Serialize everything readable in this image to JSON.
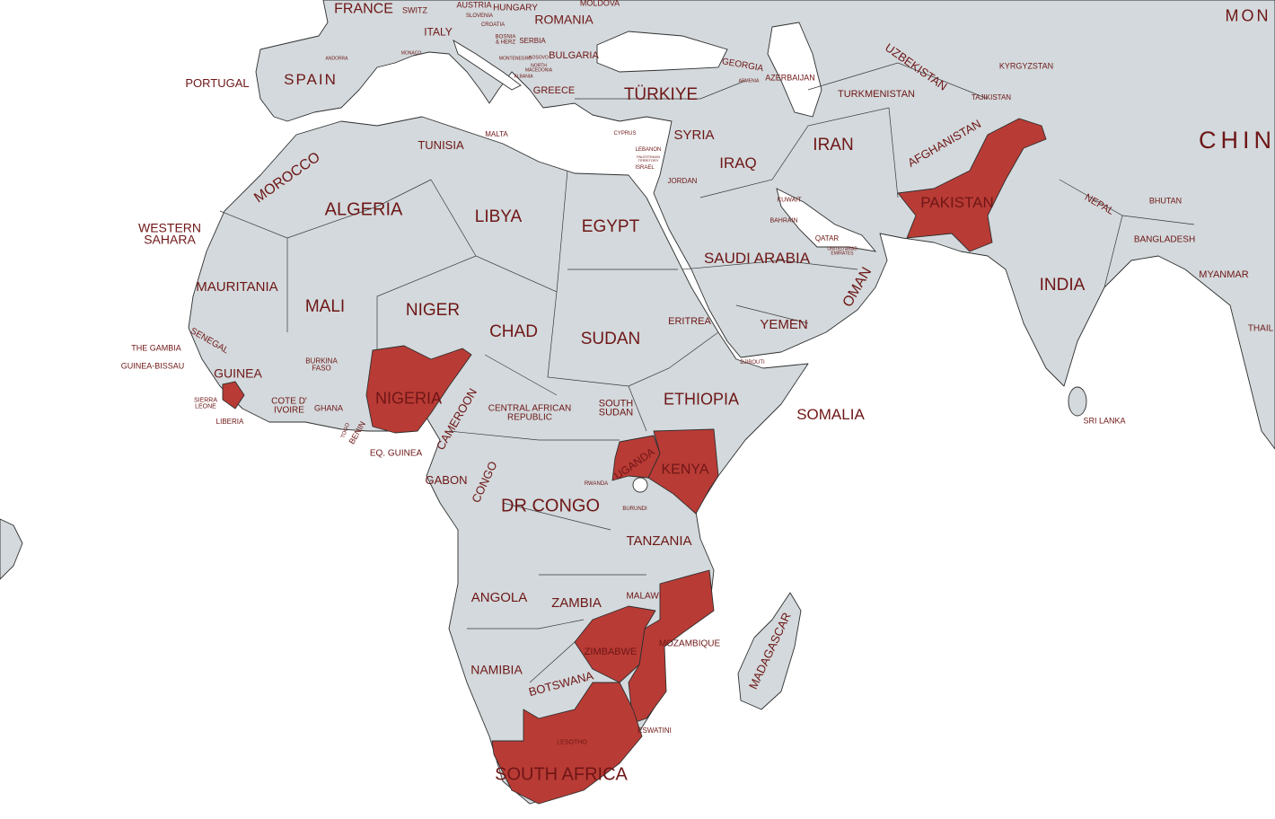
{
  "map": {
    "land_color": "#d3d9dc",
    "sea_color": "#ffffff",
    "highlight_color": "#b93b35",
    "label_color": "#6e1616",
    "highlighted_countries": [
      "Nigeria",
      "Sierra Leone",
      "Kenya",
      "Uganda",
      "Pakistan",
      "Mozambique",
      "Zimbabwe",
      "South Africa"
    ]
  },
  "labels": [
    {
      "text": "FRANCE"
    },
    {
      "text": "SWITZ"
    },
    {
      "text": "AUSTRIA"
    },
    {
      "text": "HUNGARY"
    },
    {
      "text": "MOLDOVA"
    },
    {
      "text": "ROMANIA"
    },
    {
      "text": "ITALY"
    },
    {
      "text": "SLOVENIA"
    },
    {
      "text": "CROATIA"
    },
    {
      "text": "BOSNIA\n& HERZ"
    },
    {
      "text": "SERBIA"
    },
    {
      "text": "BULGARIA"
    },
    {
      "text": "MONTENEGRO"
    },
    {
      "text": "KOSOVO"
    },
    {
      "text": "NORTH\nMACEDONIA"
    },
    {
      "text": "ALBANIA"
    },
    {
      "text": "GREECE"
    },
    {
      "text": "ANDORRA"
    },
    {
      "text": "MONACO"
    },
    {
      "text": "SPAIN"
    },
    {
      "text": "PORTUGAL"
    },
    {
      "text": "MALTA"
    },
    {
      "text": "TUNISIA"
    },
    {
      "text": "CYPRUS"
    },
    {
      "text": "LEBANON"
    },
    {
      "text": "PALESTINIAN\nTERRITORY"
    },
    {
      "text": "ISRAEL"
    },
    {
      "text": "SYRIA"
    },
    {
      "text": "IRAQ"
    },
    {
      "text": "JORDAN"
    },
    {
      "text": "IRAN"
    },
    {
      "text": "KUWAIT"
    },
    {
      "text": "BAHRAIN"
    },
    {
      "text": "QATAR"
    },
    {
      "text": "UNITED ARAB\nEMIRATES"
    },
    {
      "text": "SAUDI ARABIA"
    },
    {
      "text": "OMAN"
    },
    {
      "text": "YEMEN"
    },
    {
      "text": "TÜRKIYE"
    },
    {
      "text": "GEORGIA"
    },
    {
      "text": "ARMENIA"
    },
    {
      "text": "AZERBAIJAN"
    },
    {
      "text": "TURKMENISTAN"
    },
    {
      "text": "UZBEKISTAN"
    },
    {
      "text": "KYRGYZSTAN"
    },
    {
      "text": "TAJIKISTAN"
    },
    {
      "text": "AFGHANISTAN"
    },
    {
      "text": "PAKISTAN"
    },
    {
      "text": "NEPAL"
    },
    {
      "text": "BHUTAN"
    },
    {
      "text": "BANGLADESH"
    },
    {
      "text": "INDIA"
    },
    {
      "text": "MYANMAR"
    },
    {
      "text": "THAIL"
    },
    {
      "text": "SRI LANKA"
    },
    {
      "text": "MON"
    },
    {
      "text": "CHIN"
    },
    {
      "text": "MOROCCO"
    },
    {
      "text": "ALGERIA"
    },
    {
      "text": "LIBYA"
    },
    {
      "text": "EGYPT"
    },
    {
      "text": "WESTERN\nSAHARA"
    },
    {
      "text": "MAURITANIA"
    },
    {
      "text": "MALI"
    },
    {
      "text": "NIGER"
    },
    {
      "text": "CHAD"
    },
    {
      "text": "SUDAN"
    },
    {
      "text": "ERITREA"
    },
    {
      "text": "DJIBOUTI"
    },
    {
      "text": "ETHIOPIA"
    },
    {
      "text": "SOMALIA"
    },
    {
      "text": "SENEGAL"
    },
    {
      "text": "THE GAMBIA"
    },
    {
      "text": "GUINEA-BISSAU"
    },
    {
      "text": "GUINEA"
    },
    {
      "text": "SIERRA\nLEONE"
    },
    {
      "text": "LIBERIA"
    },
    {
      "text": "BURKINA\nFASO"
    },
    {
      "text": "COTE D'\nIVOIRE"
    },
    {
      "text": "GHANA"
    },
    {
      "text": "TOGO"
    },
    {
      "text": "BENIN"
    },
    {
      "text": "NIGERIA"
    },
    {
      "text": "CAMEROON"
    },
    {
      "text": "CENTRAL AFRICAN\nREPUBLIC"
    },
    {
      "text": "SOUTH\nSUDAN"
    },
    {
      "text": "EQ. GUINEA"
    },
    {
      "text": "GABON"
    },
    {
      "text": "CONGO"
    },
    {
      "text": "DR CONGO"
    },
    {
      "text": "UGANDA"
    },
    {
      "text": "KENYA"
    },
    {
      "text": "RWANDA"
    },
    {
      "text": "BURUNDI"
    },
    {
      "text": "TANZANIA"
    },
    {
      "text": "ANGOLA"
    },
    {
      "text": "ZAMBIA"
    },
    {
      "text": "MALAWI"
    },
    {
      "text": "MOZAMBIQUE"
    },
    {
      "text": "ZIMBABWE"
    },
    {
      "text": "NAMIBIA"
    },
    {
      "text": "BOTSWANA"
    },
    {
      "text": "MADAGASCAR"
    },
    {
      "text": "LESOTHO"
    },
    {
      "text": "ESWATINI"
    },
    {
      "text": "SOUTH AFRICA"
    }
  ]
}
